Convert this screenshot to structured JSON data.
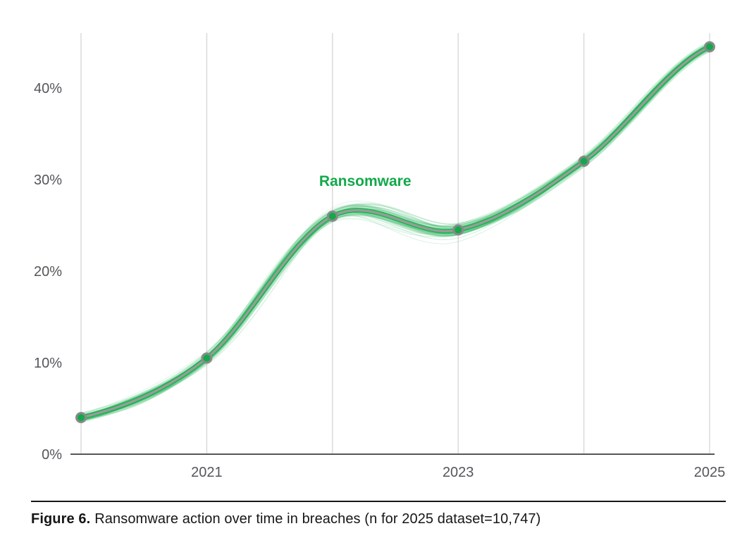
{
  "page": {
    "background": "#ffffff"
  },
  "figure_caption": {
    "label": "Figure 6.",
    "text": "Ransomware action over time in breaches (n for 2025 dataset=10,747)"
  },
  "chart_data": {
    "type": "line",
    "title": "",
    "xlabel": "",
    "ylabel": "",
    "series": [
      {
        "name": "Ransomware",
        "x": [
          2020,
          2021,
          2022,
          2023,
          2024,
          2025
        ],
        "values": [
          4,
          10.5,
          26,
          24.5,
          32,
          44.5
        ]
      }
    ],
    "x_ticks": [
      2021,
      2023,
      2025
    ],
    "x_tick_labels": [
      "2021",
      "2023",
      "2025"
    ],
    "grid_years": [
      2020,
      2021,
      2022,
      2023,
      2024,
      2025
    ],
    "y_ticks": [
      0,
      10,
      20,
      30,
      40
    ],
    "y_tick_labels": [
      "0%",
      "10%",
      "20%",
      "30%",
      "40%"
    ],
    "xlim": [
      2020,
      2025
    ],
    "ylim": [
      0,
      46
    ],
    "grid": "vertical-only",
    "legend_position": "none",
    "annotation": {
      "text": "Ransomware",
      "year": 2022.26,
      "value": 29.3
    },
    "style_note": "bootstrap spaghetti band of thin translucent green lines around a gray mean line with ringed dots at yearly values",
    "colors": {
      "green": "#12a94b",
      "green_core": "#1db150",
      "mean_line_gray": "#9b9b9b",
      "gridline": "#d8d8d8",
      "axis_line": "#55565a",
      "tick_label": "#55565a",
      "point_ring_gray": "#8a8a8a",
      "caption_text": "#161616"
    }
  }
}
